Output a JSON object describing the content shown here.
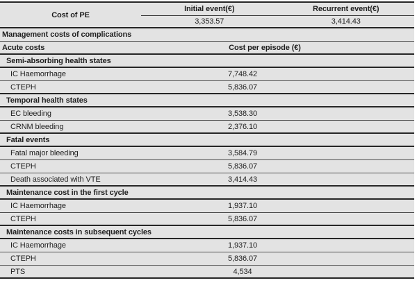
{
  "colors": {
    "row_background": "#e3e3e3",
    "thick_line": "#262626",
    "thin_line": "#4d4d4d",
    "text": "#1f1f1f",
    "page_background": "#ffffff"
  },
  "title_block": {
    "row_label": "Cost of PE",
    "columns": [
      "Initial event(€)",
      "Recurrent event(€)"
    ],
    "values": [
      "3,353.57",
      "3,414.43"
    ]
  },
  "body": [
    {
      "label": "Management costs of complications",
      "value": ""
    },
    {
      "label": "Acute costs",
      "value": "Cost per episode (€)"
    },
    {
      "label": "Semi-absorbing health states",
      "value": ""
    },
    {
      "label": "IC Haemorrhage",
      "value": "7,748.42"
    },
    {
      "label": "CTEPH",
      "value": "5,836.07"
    },
    {
      "label": "Temporal health states",
      "value": ""
    },
    {
      "label": "EC bleeding",
      "value": "3,538.30"
    },
    {
      "label": "CRNM bleeding",
      "value": "2,376.10"
    },
    {
      "label": "Fatal events",
      "value": ""
    },
    {
      "label": "Fatal major bleeding",
      "value": "3,584.79"
    },
    {
      "label": "CTEPH",
      "value": "5,836.07"
    },
    {
      "label": "Death associated with VTE",
      "value": "3,414.43"
    },
    {
      "label": "Maintenance cost in the first cycle",
      "value": ""
    },
    {
      "label": "IC Haemorrhage",
      "value": "1,937.10"
    },
    {
      "label": "CTEPH",
      "value": "5,836.07"
    },
    {
      "label": "Maintenance costs in subsequent cycles",
      "value": ""
    },
    {
      "label": "IC Haemorrhage",
      "value": "1,937.10"
    },
    {
      "label": "CTEPH",
      "value": "5,836.07"
    },
    {
      "label": "PTS",
      "value": "4,534"
    }
  ]
}
